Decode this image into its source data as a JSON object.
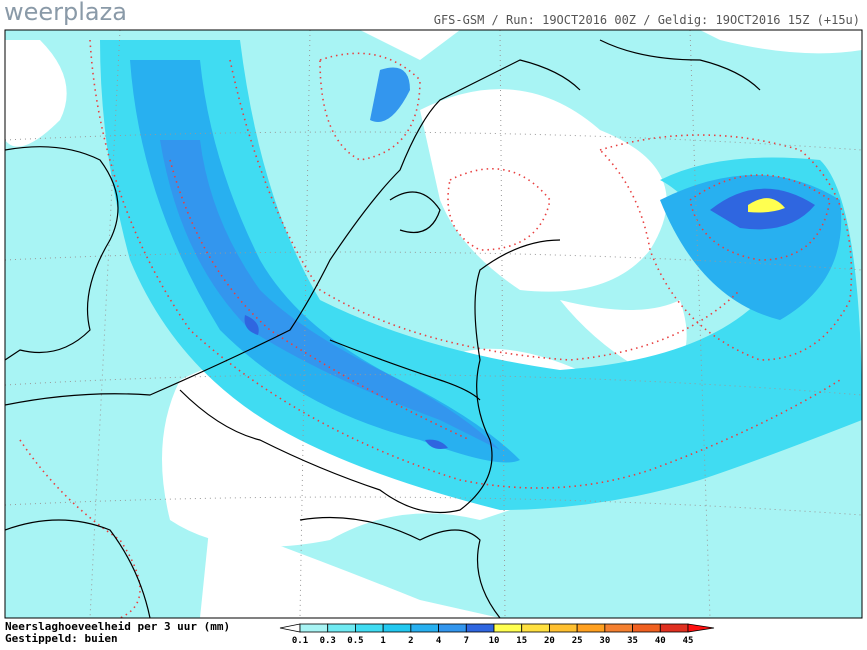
{
  "logo": "weerplaza",
  "header": "GFS-GSM / Run: 19OCT2016 00Z / Geldig: 19OCT2016 15Z (+15u)",
  "footer": {
    "line1": "Neerslaghoeveelheid per 3 uur (mm)",
    "line2": "Gestippeld: buien"
  },
  "colorbar": {
    "levels": [
      0.1,
      0.3,
      0.5,
      1,
      2,
      4,
      7,
      10,
      15,
      20,
      25,
      30,
      35,
      40,
      45
    ],
    "colors": [
      "#a8f4f4",
      "#70eaf2",
      "#40dcf2",
      "#22c8f0",
      "#28b0f0",
      "#3396ee",
      "#2f66e0",
      "#ffff50",
      "#ffe040",
      "#ffc030",
      "#ffa020",
      "#f58030",
      "#f06020",
      "#e03020"
    ],
    "under_color": "#ffffff",
    "over_color": "#ff1010"
  }
}
